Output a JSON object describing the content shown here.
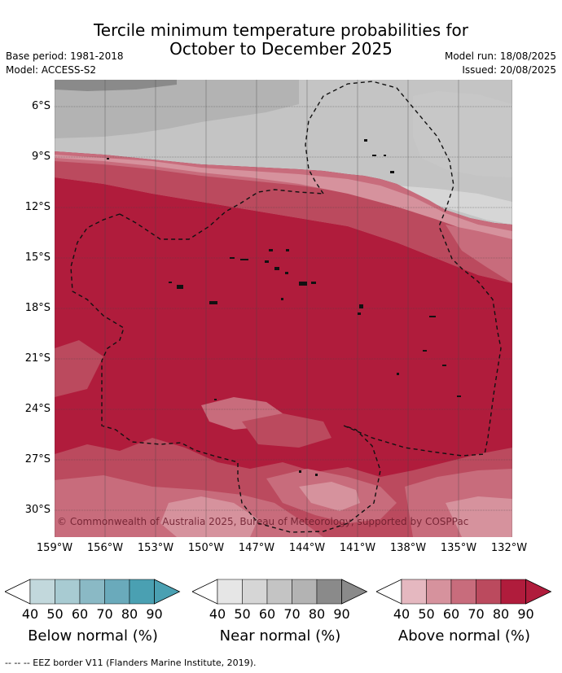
{
  "title_line1": "Tercile minimum temperature probabilities for",
  "title_line2": "October to December 2025",
  "base_period": "Base period: 1981-2018",
  "model": "Model: ACCESS-S2",
  "model_run": "Model run: 18/08/2025",
  "issued": "Issued: 20/08/2025",
  "lat_labels": [
    "6°S",
    "9°S",
    "12°S",
    "15°S",
    "18°S",
    "21°S",
    "24°S",
    "27°S",
    "30°S"
  ],
  "lon_labels": [
    "159°W",
    "156°W",
    "153°W",
    "150°W",
    "147°W",
    "144°W",
    "141°W",
    "138°W",
    "135°W",
    "132°W"
  ],
  "copyright": "© Commonwealth of Australia 2025, Bureau of Meteorology, supported by COSPPac",
  "colorbars": [
    {
      "label": "Below normal (%)",
      "ticks": [
        "40",
        "50",
        "60",
        "70",
        "80",
        "90"
      ],
      "colors": [
        "#ffffff",
        "#c2d8dc",
        "#a8cbd2",
        "#8ab9c5",
        "#6aaabb",
        "#4aa0b2"
      ]
    },
    {
      "label": "Near normal (%)",
      "ticks": [
        "40",
        "50",
        "60",
        "70",
        "80",
        "90"
      ],
      "colors": [
        "#ffffff",
        "#e6e6e6",
        "#d6d6d6",
        "#c4c4c4",
        "#b3b3b3",
        "#8a8a8a"
      ]
    },
    {
      "label": "Above normal (%)",
      "ticks": [
        "40",
        "50",
        "60",
        "70",
        "80",
        "90"
      ],
      "colors": [
        "#ffffff",
        "#e5b8c0",
        "#d6929d",
        "#c86c7c",
        "#bb4a5e",
        "#b01c3c"
      ]
    }
  ],
  "footer": "--  --  -- EEZ border V11 (Flanders Marine Institute, 2019)."
}
